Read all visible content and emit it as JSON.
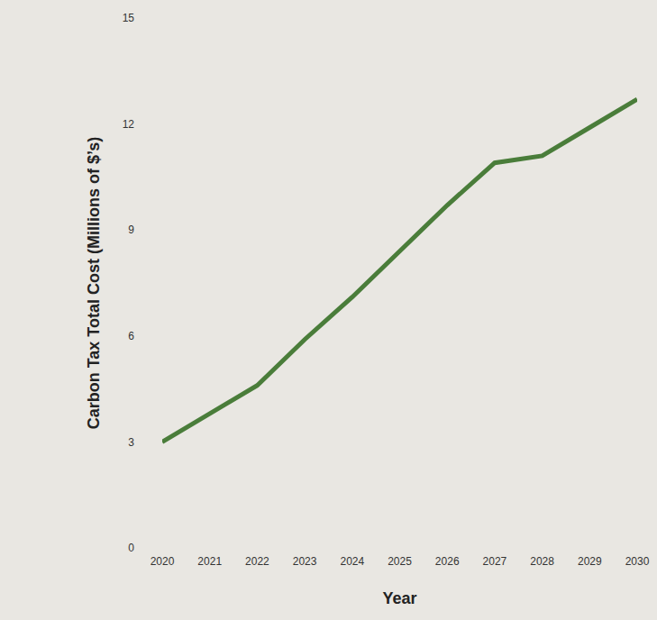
{
  "chart_data": {
    "type": "line",
    "x_label": "Year",
    "y_label": "Carbon Tax Total Cost (Millions of $’s)",
    "x": [
      2020,
      2021,
      2022,
      2023,
      2024,
      2025,
      2026,
      2027,
      2028,
      2029,
      2030
    ],
    "values": [
      3.0,
      3.8,
      4.6,
      5.9,
      7.1,
      8.4,
      9.7,
      10.9,
      11.1,
      11.9,
      12.7
    ],
    "color": "#4a7d3a",
    "xlim": [
      2020,
      2030
    ],
    "xticks": [
      2020,
      2021,
      2022,
      2023,
      2024,
      2025,
      2026,
      2027,
      2028,
      2029,
      2030
    ],
    "ylim": [
      0,
      15
    ],
    "yticks": [
      0,
      3,
      6,
      9,
      12,
      15
    ],
    "grid": false
  }
}
